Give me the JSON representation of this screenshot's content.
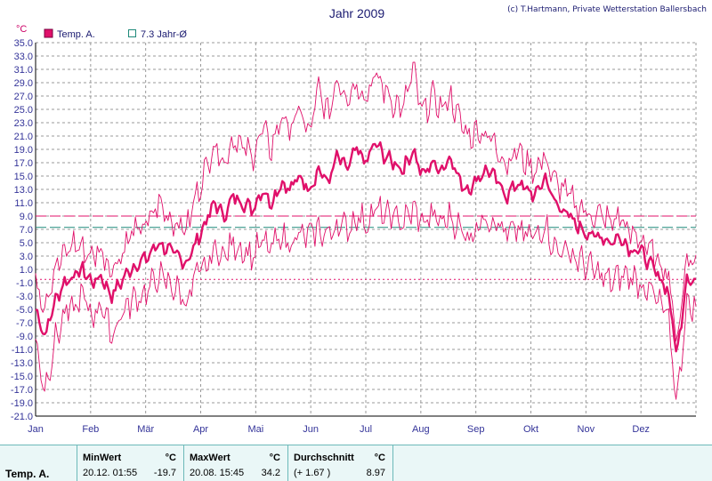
{
  "chart_data": {
    "type": "line",
    "title": "Jahr 2009",
    "credit": "(c) T.Hartmann, Private Wetterstation Ballersbach",
    "ylabel": "°C",
    "ylim": [
      -21,
      35
    ],
    "y_ticks": [
      "35.0",
      "33.0",
      "31.0",
      "29.0",
      "27.0",
      "25.0",
      "23.0",
      "21.0",
      "19.0",
      "17.0",
      "15.0",
      "13.0",
      "11.0",
      "9.0",
      "7.0",
      "5.0",
      "3.0",
      "1.0",
      "-1.0",
      "-3.0",
      "-5.0",
      "-7.0",
      "-9.0",
      "-11.0",
      "-13.0",
      "-15.0",
      "-17.0",
      "-19.0",
      "-21.0"
    ],
    "categories": [
      "Jan",
      "Feb",
      "Mär",
      "Apr",
      "Mai",
      "Jun",
      "Jul",
      "Aug",
      "Sep",
      "Okt",
      "Nov",
      "Dez"
    ],
    "legend": [
      {
        "label": "Temp. A.",
        "color": "#e0106a"
      },
      {
        "label": "7.3 Jahr-Ø",
        "color": "#1f8a7a"
      }
    ],
    "reference_lines": {
      "year_avg": 7.3,
      "max_ref": 9.0,
      "zero_ref": -0.5
    },
    "series": [
      {
        "name": "Temp. A.",
        "color": "#e0106a",
        "role": "mean",
        "weekly": [
          -5,
          -9,
          -4,
          -1,
          0,
          1,
          -1,
          0,
          -3,
          -1,
          1,
          2,
          3,
          5,
          4,
          3,
          2,
          5,
          8,
          11,
          9,
          12,
          11,
          10,
          13,
          11,
          14,
          13,
          15,
          13,
          16,
          14,
          18,
          16,
          19,
          17,
          20,
          18,
          17,
          16,
          19,
          15,
          17,
          16,
          18,
          14,
          13,
          15,
          16,
          14,
          12,
          14,
          13,
          12,
          15,
          11,
          10,
          8,
          7,
          6,
          6,
          5,
          6,
          4,
          4,
          2,
          0,
          -2,
          -12,
          0,
          -1
        ]
      },
      {
        "name": "Tmax",
        "color": "#e0106a",
        "role": "max",
        "weekly": [
          -1,
          -4,
          1,
          3,
          5,
          4,
          3,
          4,
          1,
          3,
          6,
          7,
          8,
          11,
          9,
          8,
          7,
          12,
          16,
          20,
          17,
          21,
          19,
          18,
          22,
          19,
          24,
          22,
          25,
          21,
          28,
          24,
          30,
          27,
          29,
          27,
          30,
          28,
          26,
          25,
          31,
          24,
          27,
          25,
          27,
          23,
          21,
          22,
          21,
          19,
          17,
          19,
          17,
          16,
          18,
          14,
          13,
          11,
          10,
          9,
          9,
          8,
          9,
          6,
          6,
          4,
          2,
          1,
          -10,
          3,
          2
        ]
      },
      {
        "name": "Tmin",
        "color": "#e0106a",
        "role": "min",
        "weekly": [
          -10,
          -17,
          -10,
          -6,
          -5,
          -3,
          -6,
          -4,
          -9,
          -6,
          -4,
          -3,
          -2,
          0,
          -1,
          -2,
          -4,
          0,
          1,
          4,
          3,
          5,
          4,
          3,
          5,
          4,
          6,
          5,
          6,
          6,
          7,
          6,
          8,
          7,
          9,
          8,
          10,
          9,
          9,
          8,
          10,
          8,
          9,
          8,
          9,
          7,
          6,
          8,
          9,
          8,
          6,
          7,
          6,
          6,
          8,
          4,
          4,
          3,
          2,
          1,
          0,
          -1,
          0,
          0,
          -1,
          -2,
          -4,
          -6,
          -19,
          -4,
          -5
        ]
      }
    ]
  },
  "stats": {
    "row_label": "Temp. A.",
    "min": {
      "header": "MinWert",
      "unit": "°C",
      "when": "20.12.  01:55",
      "value": "-19.7"
    },
    "max": {
      "header": "MaxWert",
      "unit": "°C",
      "when": "20.08.  15:45",
      "value": "34.2"
    },
    "avg": {
      "header": "Durchschnitt",
      "unit": "°C",
      "delta": "(+ 1.67 )",
      "value": "8.97"
    }
  }
}
